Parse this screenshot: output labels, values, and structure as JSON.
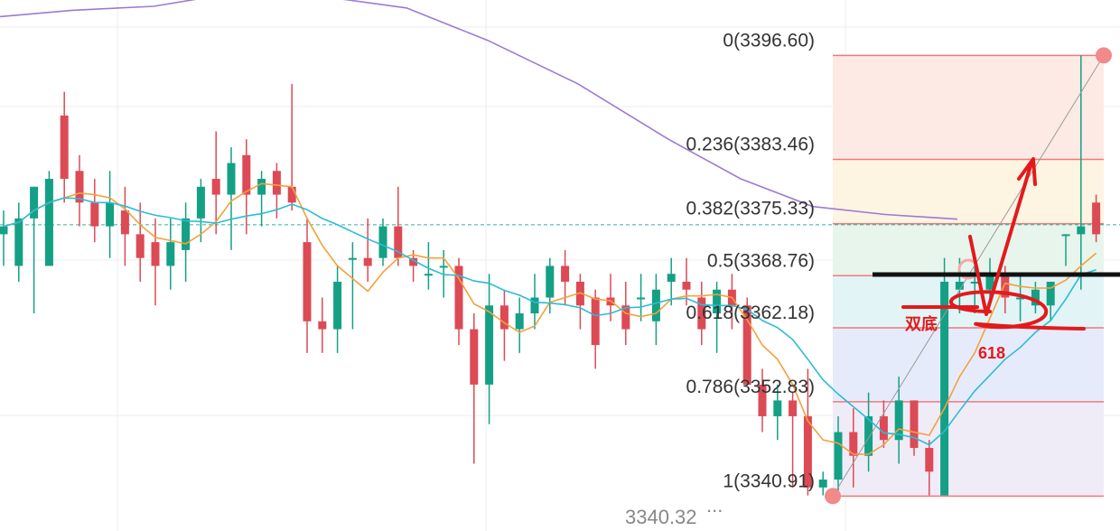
{
  "colors": {
    "up": "#14a085",
    "down": "#dc4a55",
    "ma_fast": "#f5a03c",
    "ma_slow": "#2bbcd6",
    "ma_long": "#9b7ad6",
    "fib_line": "#f07a7a",
    "annotation": "#e31a1c",
    "neckline": "#111111",
    "dashed_price": "#33b0a0",
    "grid": "#ececec"
  },
  "labels": {
    "low_price": "3340.32",
    "low_ellipsis": "...",
    "double_bottom": "双底",
    "fib_618": "618"
  },
  "chart_data": {
    "type": "candlestick",
    "y_range": [
      3336.5,
      3403.6
    ],
    "fib_levels": [
      {
        "ratio": "0",
        "price": 3396.6,
        "label": "0(3396.60)"
      },
      {
        "ratio": "0.236",
        "price": 3383.46,
        "label": "0.236(3383.46)"
      },
      {
        "ratio": "0.382",
        "price": 3375.33,
        "label": "0.382(3375.33)"
      },
      {
        "ratio": "0.5",
        "price": 3368.76,
        "label": "0.5(3368.76)"
      },
      {
        "ratio": "0.618",
        "price": 3362.18,
        "label": "0.618(3362.18)"
      },
      {
        "ratio": "0.786",
        "price": 3352.83,
        "label": "0.786(3352.83)"
      },
      {
        "ratio": "1",
        "price": 3340.91,
        "label": "1(3340.91)"
      }
    ],
    "fib_zone_colors": [
      "#fdeae5",
      "#fdf4e2",
      "#e8f5ec",
      "#e2f4f6",
      "#e6ebfb",
      "#efecf8"
    ],
    "current_price": 3375.2,
    "candles": [
      [
        3374,
        3375,
        3377,
        3370
      ],
      [
        3370,
        3376,
        3378,
        3368
      ],
      [
        3376,
        3380,
        3380,
        3364
      ],
      [
        3370,
        3381,
        3382,
        3370
      ],
      [
        3389,
        3381,
        3392,
        3378
      ],
      [
        3382,
        3378,
        3384,
        3375
      ],
      [
        3378,
        3375,
        3381,
        3373
      ],
      [
        3375,
        3378,
        3382,
        3371
      ],
      [
        3377,
        3374,
        3380,
        3370
      ],
      [
        3374,
        3371,
        3378,
        3368
      ],
      [
        3373,
        3370,
        3376,
        3365
      ],
      [
        3370,
        3373,
        3376,
        3367
      ],
      [
        3372,
        3376,
        3378,
        3368
      ],
      [
        3376,
        3380,
        3381,
        3373
      ],
      [
        3381,
        3379,
        3387,
        3374
      ],
      [
        3379,
        3383,
        3385,
        3372
      ],
      [
        3384,
        3379,
        3386,
        3374
      ],
      [
        3379,
        3381,
        3382,
        3375
      ],
      [
        3382,
        3379,
        3383,
        3376
      ],
      [
        3380,
        3378,
        3393,
        3377
      ],
      [
        3373,
        3363,
        3376,
        3359
      ],
      [
        3363,
        3362,
        3366,
        3359
      ],
      [
        3362,
        3368,
        3370,
        3359
      ],
      [
        3371,
        3371,
        3373,
        3362
      ],
      [
        3371,
        3370,
        3376,
        3368
      ],
      [
        3371,
        3375,
        3376,
        3370
      ],
      [
        3375,
        3371,
        3380,
        3370
      ],
      [
        3371,
        3370,
        3372,
        3368
      ],
      [
        3369,
        3369,
        3373,
        3367
      ],
      [
        3370,
        3370,
        3372,
        3366
      ],
      [
        3370,
        3362,
        3371,
        3360
      ],
      [
        3362,
        3355,
        3364,
        3345
      ],
      [
        3355,
        3365,
        3369,
        3350
      ],
      [
        3365,
        3362,
        3367,
        3358
      ],
      [
        3362,
        3364,
        3366,
        3359
      ],
      [
        3364,
        3366,
        3369,
        3362
      ],
      [
        3366,
        3370,
        3371,
        3364
      ],
      [
        3370,
        3368,
        3372,
        3365
      ],
      [
        3368,
        3365,
        3369,
        3362
      ],
      [
        3366,
        3360,
        3367,
        3357
      ],
      [
        3366,
        3365,
        3369,
        3363
      ],
      [
        3365,
        3362,
        3368,
        3360
      ],
      [
        3366,
        3366,
        3369,
        3363
      ],
      [
        3363,
        3367,
        3369,
        3360
      ],
      [
        3368,
        3369,
        3371,
        3365
      ],
      [
        3368,
        3367,
        3371,
        3365
      ],
      [
        3366,
        3362,
        3368,
        3360
      ],
      [
        3364,
        3367,
        3368,
        3359
      ],
      [
        3367,
        3365,
        3369,
        3362
      ],
      [
        3365,
        3355,
        3366,
        3355
      ],
      [
        3355,
        3351,
        3357,
        3349
      ],
      [
        3351,
        3353,
        3355,
        3348
      ],
      [
        3353,
        3351,
        3354,
        3342
      ],
      [
        3351,
        3342,
        3357,
        3341
      ],
      [
        3342,
        3343,
        3344,
        3341
      ],
      [
        3343,
        3349,
        3351,
        3341
      ],
      [
        3349,
        3346,
        3352,
        3342
      ],
      [
        3346,
        3351,
        3354,
        3344
      ],
      [
        3351,
        3348,
        3353,
        3347
      ],
      [
        3348,
        3353,
        3356,
        3345
      ],
      [
        3353,
        3347,
        3353,
        3346
      ],
      [
        3347,
        3344,
        3348,
        3341
      ],
      [
        3341,
        3368,
        3371,
        3342
      ],
      [
        3367,
        3368,
        3371,
        3364
      ],
      [
        3368,
        3368,
        3370,
        3364
      ],
      [
        3367,
        3369,
        3371,
        3365
      ],
      [
        3369,
        3366,
        3370,
        3364
      ],
      [
        3366,
        3366,
        3369,
        3363
      ],
      [
        3365,
        3367,
        3368,
        3364
      ],
      [
        3365,
        3368,
        3368,
        3363
      ],
      [
        3374,
        3374,
        3374,
        3370
      ],
      [
        3374,
        3375,
        3396.6,
        3367
      ],
      [
        3378,
        3374,
        3379,
        3373
      ]
    ]
  }
}
